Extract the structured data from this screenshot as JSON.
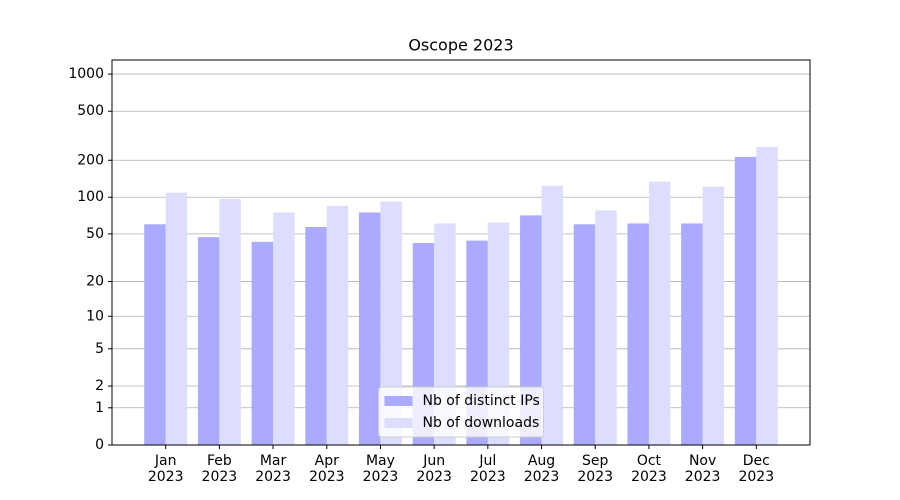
{
  "chart_data": {
    "type": "bar",
    "title": "Oscope 2023",
    "categories": [
      "Jan\n2023",
      "Feb\n2023",
      "Mar\n2023",
      "Apr\n2023",
      "May\n2023",
      "Jun\n2023",
      "Jul\n2023",
      "Aug\n2023",
      "Sep\n2023",
      "Oct\n2023",
      "Nov\n2023",
      "Dec\n2023"
    ],
    "series": [
      {
        "name": "Nb of distinct IPs",
        "color": "#aaaaff",
        "values": [
          60,
          47,
          43,
          57,
          75,
          42,
          44,
          71,
          60,
          61,
          61,
          213
        ]
      },
      {
        "name": "Nb of downloads",
        "color": "#ddddff",
        "values": [
          109,
          97,
          75,
          85,
          92,
          61,
          62,
          124,
          78,
          134,
          122,
          257
        ]
      }
    ],
    "yscale": "symlog",
    "ylim": [
      0,
      1300
    ],
    "yticks": [
      0,
      1,
      2,
      5,
      10,
      20,
      50,
      100,
      200,
      500,
      1000
    ],
    "grid": true,
    "legend": "lower center"
  }
}
